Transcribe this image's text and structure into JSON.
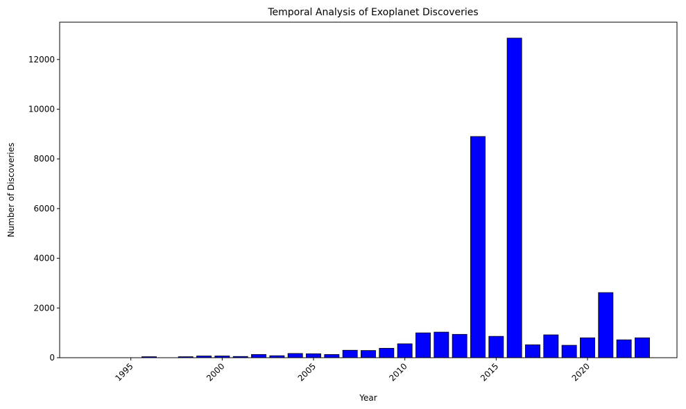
{
  "chart_data": {
    "type": "bar",
    "title": "Temporal Analysis of Exoplanet Discoveries",
    "xlabel": "Year",
    "ylabel": "Number of Discoveries",
    "x": [
      1996,
      1998,
      1999,
      2000,
      2001,
      2002,
      2003,
      2004,
      2005,
      2006,
      2007,
      2008,
      2009,
      2010,
      2011,
      2012,
      2013,
      2014,
      2015,
      2016,
      2017,
      2018,
      2019,
      2020,
      2021,
      2022,
      2023
    ],
    "values": [
      40,
      40,
      70,
      70,
      50,
      130,
      80,
      170,
      160,
      130,
      300,
      290,
      380,
      560,
      1000,
      1030,
      940,
      8900,
      860,
      12860,
      520,
      920,
      500,
      800,
      2620,
      720,
      800
    ],
    "xlim": [
      1991.1,
      2024.9
    ],
    "ylim": [
      0,
      13500
    ],
    "xticks": [
      1995,
      2000,
      2005,
      2010,
      2015,
      2020
    ],
    "yticks": [
      0,
      2000,
      4000,
      6000,
      8000,
      10000,
      12000
    ],
    "x_tick_rotation": 45,
    "bar_color": "#0000ff",
    "bar_edge_color": "#000000",
    "grid": false,
    "legend": "none"
  }
}
